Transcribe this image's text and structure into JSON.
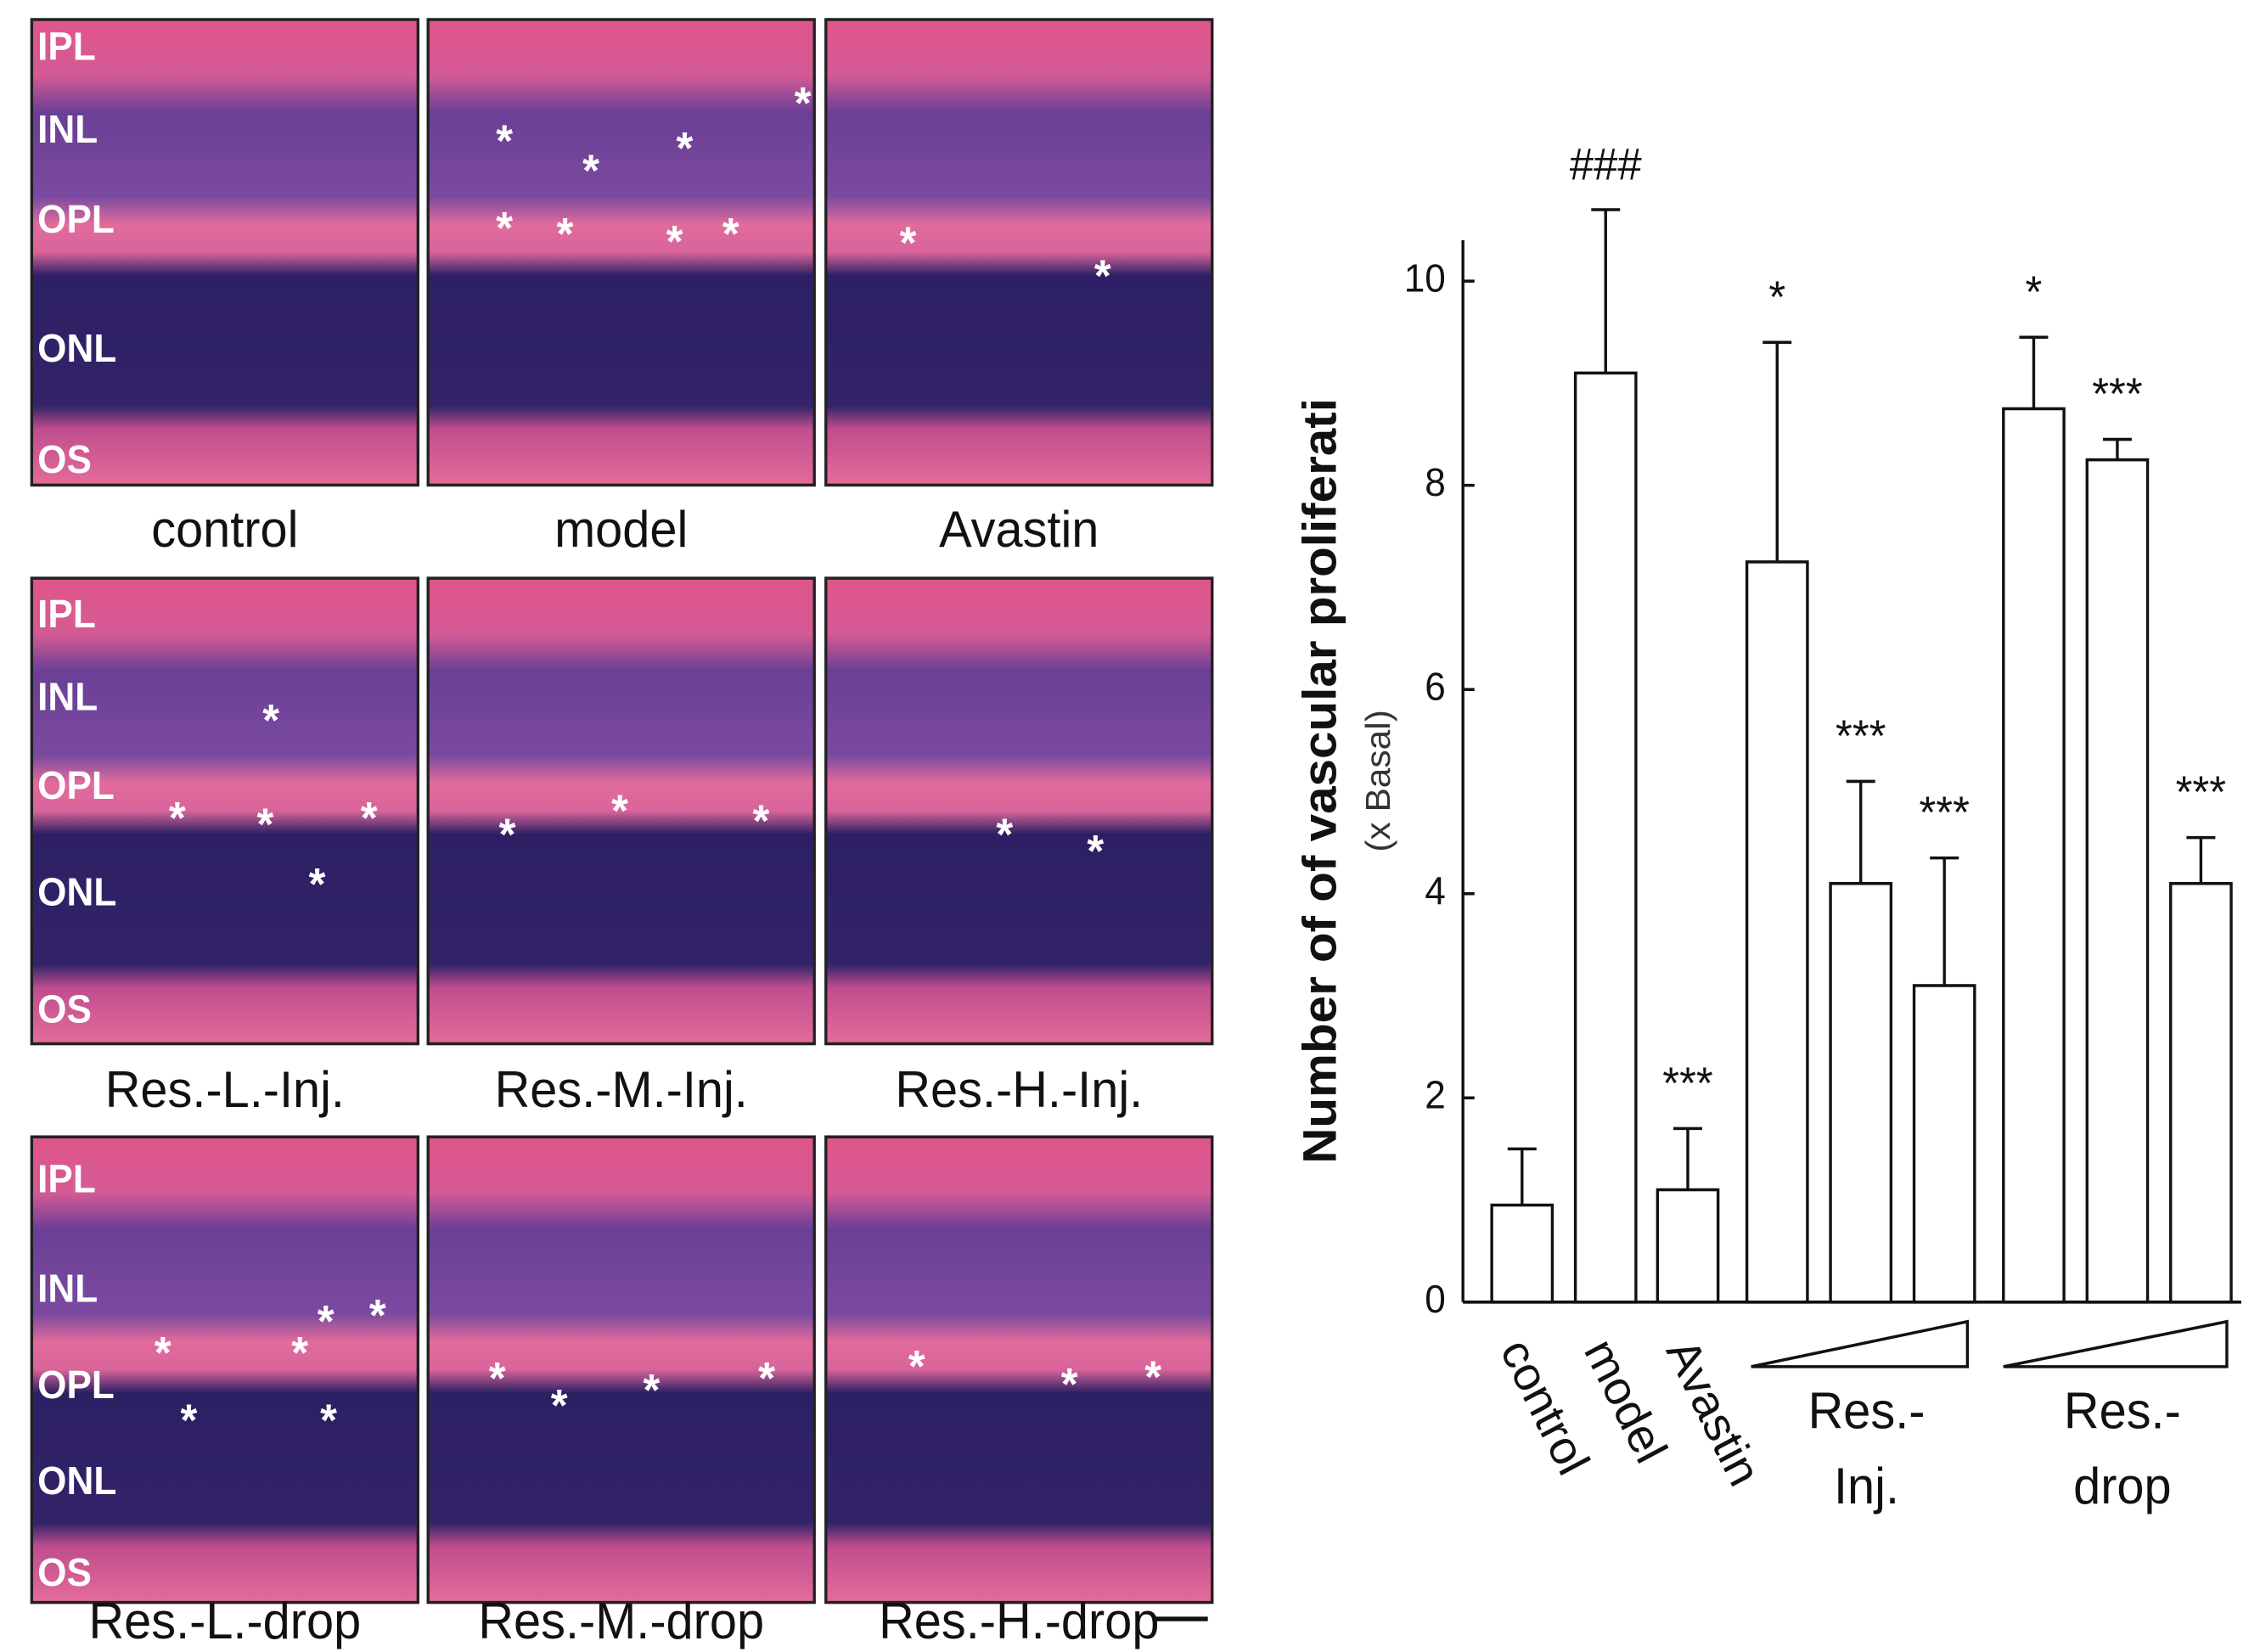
{
  "panels": {
    "captions": [
      "control",
      "model",
      "Avastin",
      "Res.-L.-Inj.",
      "Res.-M.-Inj.",
      "Res.-H.-Inj.",
      "Res.-L.-drop",
      "Res.-M.-drop",
      "Res.-H.-drop"
    ],
    "layer_labels": [
      "IPL",
      "INL",
      "OPL",
      "ONL",
      "OS"
    ],
    "marker": "*"
  },
  "chart_data": {
    "type": "bar",
    "y_label": "Number of of vascular proliferati",
    "y_sublabel": "(x Basal)",
    "categories": [
      "control",
      "model",
      "Avastin",
      null,
      null,
      null,
      null,
      null,
      null
    ],
    "groups": [
      "Res.-\nInj.",
      "Res.-\ndrop"
    ],
    "values": [
      0.95,
      9.1,
      1.1,
      7.25,
      4.1,
      3.1,
      8.75,
      8.25,
      4.1
    ],
    "errors": [
      0.55,
      1.6,
      0.6,
      2.15,
      1.0,
      1.25,
      0.7,
      0.2,
      0.45
    ],
    "significance": [
      null,
      "###",
      "***",
      "*",
      "***",
      "***",
      "*",
      "***",
      "***"
    ],
    "color": "#ffffff",
    "ylim": [
      0,
      10.4
    ],
    "yticks": [
      0,
      2,
      4,
      6,
      8,
      10
    ]
  }
}
